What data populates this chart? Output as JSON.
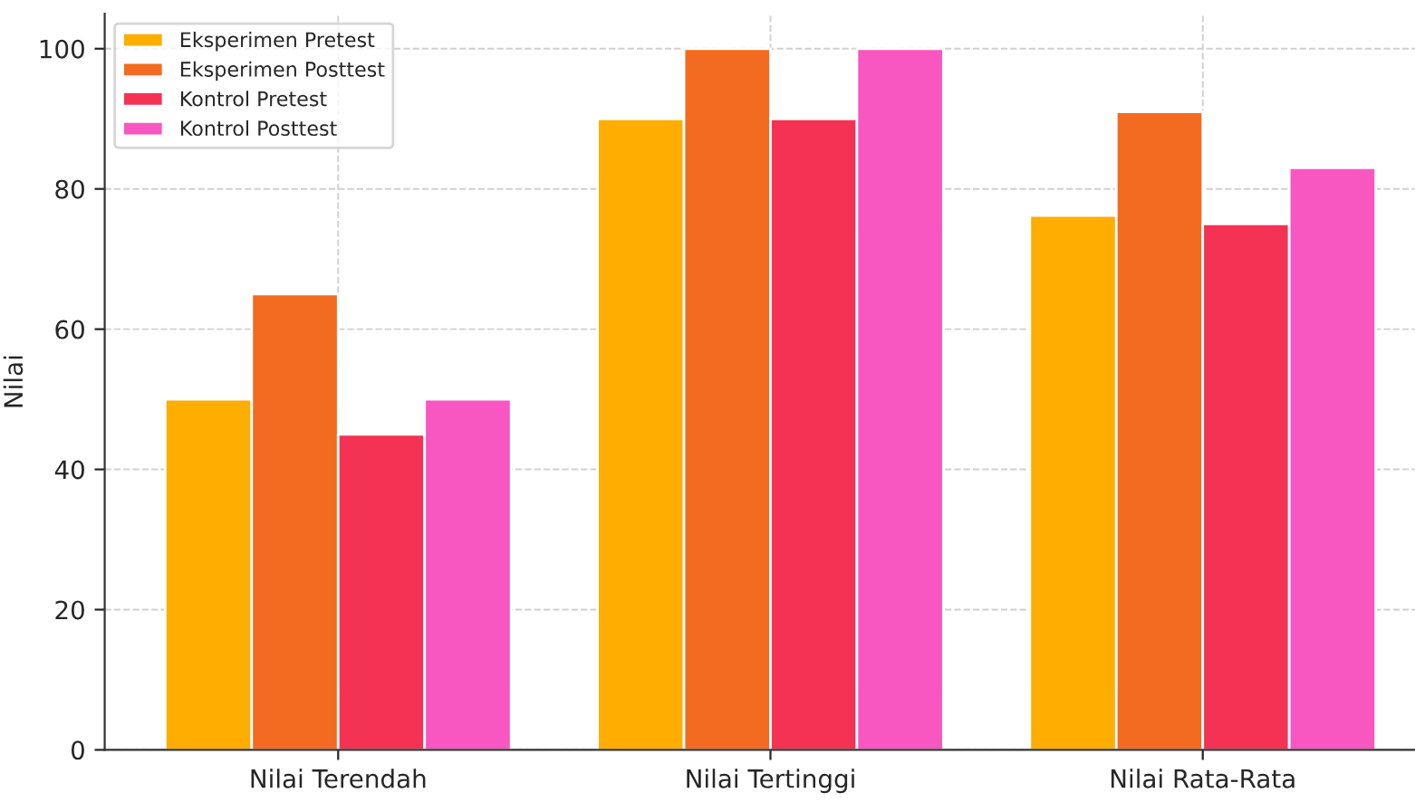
{
  "chart_data": {
    "type": "bar",
    "ylabel": "Nilai",
    "categories": [
      "Nilai Terendah",
      "Nilai Tertinggi",
      "Nilai Rata-Rata"
    ],
    "series": [
      {
        "name": "Eksperimen Pretest",
        "color": "#ffad00",
        "values": [
          50,
          90,
          76.2
        ]
      },
      {
        "name": "Eksperimen Posttest",
        "color": "#f26b21",
        "values": [
          65,
          100,
          91
        ]
      },
      {
        "name": "Kontrol Pretest",
        "color": "#f43254",
        "values": [
          45,
          90,
          75
        ]
      },
      {
        "name": "Kontrol Posttest",
        "color": "#f857c1",
        "values": [
          50,
          100,
          83
        ]
      }
    ],
    "ylim": [
      0,
      105
    ],
    "yticks": [
      0,
      20,
      40,
      60,
      80,
      100
    ],
    "grid": true,
    "legend": "top left"
  }
}
